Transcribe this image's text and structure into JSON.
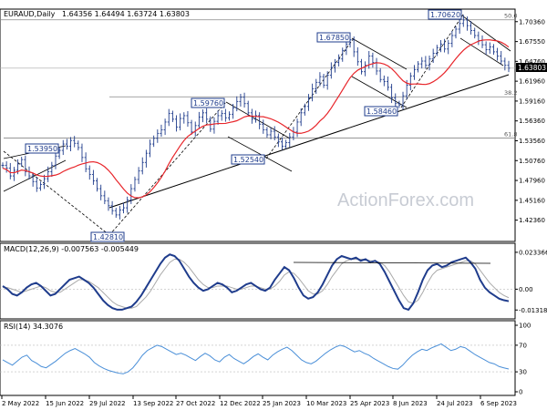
{
  "chart_data": [
    {
      "type": "candlestick",
      "title": "EURAUD,Daily",
      "ohlc_text": "1.64356 1.64494 1.63724 1.63803",
      "last_price": "1.63803",
      "y_ticks": [
        "1.70360",
        "1.67550",
        "1.64760",
        "1.61960",
        "1.59160",
        "1.56360",
        "1.53560",
        "1.50760",
        "1.47960",
        "1.45160",
        "1.42360"
      ],
      "x_ticks": [
        "2 May 2022",
        "15 Jun 2022",
        "29 Jul 2022",
        "13 Sep 2022",
        "27 Oct 2022",
        "12 Dec 2022",
        "25 Jan 2023",
        "10 Mar 2023",
        "25 Apr 2023",
        "8 Jun 2023",
        "24 Jul 2023",
        "6 Sep 2023"
      ],
      "ylim": [
        1.409,
        1.711
      ],
      "moving_average_color": "#e8252a",
      "price_color": "#1f3c8c",
      "swing_labels": [
        {
          "text": "1.53950",
          "price": 1.5395
        },
        {
          "text": "1.42810",
          "price": 1.4281
        },
        {
          "text": "1.59760",
          "price": 1.5976
        },
        {
          "text": "1.52540",
          "price": 1.5254
        },
        {
          "text": "1.67850",
          "price": 1.6785
        },
        {
          "text": "1.58460",
          "price": 1.5846
        },
        {
          "text": "1.70620",
          "price": 1.7062
        }
      ],
      "fib_levels": [
        {
          "label": "50.0",
          "price": 1.7062
        },
        {
          "label": "38.2",
          "price": 1.5976
        },
        {
          "label": "61.8",
          "price": 1.5395
        }
      ],
      "close_series": [
        1.501,
        1.497,
        1.486,
        1.494,
        1.503,
        1.509,
        1.492,
        1.486,
        1.478,
        1.469,
        1.474,
        1.482,
        1.492,
        1.501,
        1.514,
        1.522,
        1.531,
        1.528,
        1.536,
        1.532,
        1.526,
        1.512,
        1.496,
        1.488,
        1.479,
        1.468,
        1.458,
        1.451,
        1.444,
        1.437,
        1.431,
        1.438,
        1.441,
        1.452,
        1.468,
        1.481,
        1.493,
        1.505,
        1.518,
        1.531,
        1.539,
        1.546,
        1.551,
        1.562,
        1.574,
        1.566,
        1.555,
        1.567,
        1.571,
        1.561,
        1.548,
        1.557,
        1.569,
        1.575,
        1.566,
        1.552,
        1.563,
        1.571,
        1.574,
        1.568,
        1.573,
        1.582,
        1.591,
        1.597,
        1.588,
        1.575,
        1.566,
        1.571,
        1.559,
        1.551,
        1.544,
        1.549,
        1.541,
        1.534,
        1.528,
        1.533,
        1.541,
        1.548,
        1.562,
        1.575,
        1.584,
        1.596,
        1.609,
        1.618,
        1.626,
        1.614,
        1.628,
        1.639,
        1.646,
        1.651,
        1.663,
        1.672,
        1.678,
        1.661,
        1.647,
        1.633,
        1.642,
        1.655,
        1.646,
        1.634,
        1.622,
        1.619,
        1.611,
        1.596,
        1.588,
        1.586,
        1.599,
        1.614,
        1.627,
        1.636,
        1.644,
        1.648,
        1.642,
        1.651,
        1.659,
        1.667,
        1.672,
        1.665,
        1.673,
        1.684,
        1.693,
        1.701,
        1.706,
        1.698,
        1.691,
        1.684,
        1.677,
        1.671,
        1.664,
        1.668,
        1.661,
        1.655,
        1.648,
        1.642,
        1.638
      ]
    },
    {
      "type": "line",
      "title": "MACD(12,26,9) -0.007563 -0.005449",
      "y_ticks": [
        "0.023366",
        "0.00",
        "-0.013186"
      ],
      "ylim": [
        -0.0165,
        0.0262
      ],
      "macd_color": "#1f3c8c",
      "signal_color": "#aaaaaa",
      "macd_series": [
        0.002,
        0.0,
        -0.003,
        -0.004,
        -0.002,
        0.001,
        0.003,
        0.004,
        0.002,
        -0.001,
        -0.004,
        -0.003,
        0.0,
        0.003,
        0.006,
        0.007,
        0.008,
        0.006,
        0.004,
        0.001,
        -0.003,
        -0.007,
        -0.01,
        -0.012,
        -0.013,
        -0.013,
        -0.012,
        -0.011,
        -0.008,
        -0.004,
        0.001,
        0.006,
        0.011,
        0.016,
        0.02,
        0.022,
        0.021,
        0.018,
        0.013,
        0.008,
        0.004,
        0.001,
        -0.001,
        0.0,
        0.002,
        0.004,
        0.003,
        0.001,
        -0.002,
        -0.001,
        0.001,
        0.003,
        0.004,
        0.002,
        0.0,
        -0.001,
        0.001,
        0.006,
        0.01,
        0.014,
        0.012,
        0.007,
        0.001,
        -0.004,
        -0.006,
        -0.005,
        -0.002,
        0.003,
        0.009,
        0.015,
        0.019,
        0.021,
        0.02,
        0.019,
        0.02,
        0.018,
        0.019,
        0.017,
        0.018,
        0.016,
        0.011,
        0.005,
        -0.001,
        -0.007,
        -0.012,
        -0.013,
        -0.009,
        -0.002,
        0.006,
        0.012,
        0.015,
        0.016,
        0.014,
        0.015,
        0.017,
        0.018,
        0.019,
        0.02,
        0.017,
        0.013,
        0.006,
        0.001,
        -0.002,
        -0.004,
        -0.006,
        -0.007,
        -0.0076
      ],
      "signal_series": [
        0.001,
        0.001,
        0.0,
        -0.001,
        -0.002,
        -0.001,
        0.0,
        0.001,
        0.002,
        0.001,
        -0.001,
        -0.002,
        -0.002,
        0.0,
        0.002,
        0.004,
        0.006,
        0.006,
        0.005,
        0.003,
        0.001,
        -0.002,
        -0.005,
        -0.008,
        -0.01,
        -0.011,
        -0.012,
        -0.012,
        -0.011,
        -0.008,
        -0.005,
        -0.001,
        0.004,
        0.009,
        0.013,
        0.017,
        0.019,
        0.019,
        0.017,
        0.014,
        0.01,
        0.006,
        0.003,
        0.001,
        0.001,
        0.002,
        0.002,
        0.002,
        0.001,
        0.0,
        0.0,
        0.001,
        0.002,
        0.002,
        0.001,
        0.0,
        0.0,
        0.002,
        0.005,
        0.009,
        0.011,
        0.01,
        0.007,
        0.003,
        -0.001,
        -0.003,
        -0.003,
        -0.001,
        0.003,
        0.008,
        0.012,
        0.016,
        0.018,
        0.019,
        0.019,
        0.019,
        0.019,
        0.018,
        0.018,
        0.017,
        0.015,
        0.011,
        0.006,
        0.001,
        -0.004,
        -0.008,
        -0.009,
        -0.007,
        -0.002,
        0.004,
        0.009,
        0.012,
        0.013,
        0.014,
        0.015,
        0.016,
        0.017,
        0.018,
        0.018,
        0.016,
        0.012,
        0.008,
        0.004,
        0.001,
        -0.002,
        -0.004,
        -0.0054
      ]
    },
    {
      "type": "line",
      "title": "RSI(14) 34.3076",
      "y_ticks": [
        "100",
        "70",
        "30",
        "0"
      ],
      "ylim": [
        0,
        100
      ],
      "series_color": "#4a8fd8",
      "rsi_series": [
        48,
        44,
        40,
        46,
        52,
        55,
        47,
        43,
        38,
        36,
        41,
        46,
        52,
        58,
        62,
        65,
        61,
        57,
        52,
        44,
        39,
        35,
        32,
        30,
        28,
        27,
        30,
        36,
        45,
        55,
        62,
        66,
        70,
        68,
        64,
        60,
        56,
        58,
        55,
        51,
        47,
        53,
        58,
        54,
        48,
        45,
        52,
        56,
        50,
        46,
        42,
        47,
        53,
        57,
        52,
        48,
        55,
        60,
        64,
        67,
        62,
        55,
        48,
        44,
        42,
        46,
        52,
        58,
        63,
        67,
        70,
        68,
        64,
        60,
        62,
        58,
        55,
        50,
        46,
        42,
        38,
        35,
        34,
        40,
        48,
        55,
        60,
        64,
        62,
        66,
        69,
        72,
        67,
        62,
        64,
        68,
        66,
        61,
        56,
        52,
        48,
        44,
        42,
        38,
        36,
        34.3
      ]
    }
  ],
  "watermark": "ActionForex.com"
}
